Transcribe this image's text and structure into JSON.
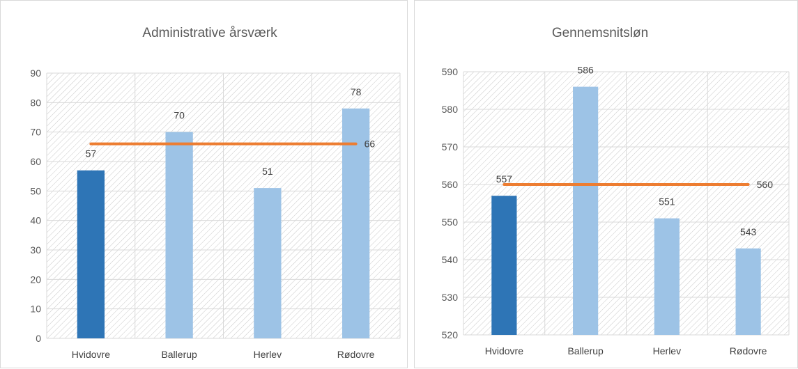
{
  "colors": {
    "highlight_bar": "#2e75b6",
    "other_bar": "#9dc3e6",
    "average_line": "#ed7d31",
    "grid": "#d9d9d9",
    "hatch": "#c8c8c8"
  },
  "chart_data": [
    {
      "type": "bar",
      "title": "Administrative årsværk",
      "categories": [
        "Hvidovre",
        "Ballerup",
        "Herlev",
        "Rødovre"
      ],
      "values": [
        57,
        70,
        51,
        78
      ],
      "value_labels": [
        "57",
        "70",
        "51",
        "78"
      ],
      "highlight_index": 0,
      "reference_line": {
        "value": 66,
        "label": "66"
      },
      "ylim": [
        0,
        90
      ],
      "yticks": [
        0,
        10,
        20,
        30,
        40,
        50,
        60,
        70,
        80,
        90
      ],
      "xlabel": "",
      "ylabel": "",
      "grid": true,
      "legend": "none"
    },
    {
      "type": "bar",
      "title": "Gennemsnitsløn",
      "categories": [
        "Hvidovre",
        "Ballerup",
        "Herlev",
        "Rødovre"
      ],
      "values": [
        557,
        586,
        551,
        543
      ],
      "value_labels": [
        "557",
        "586",
        "551",
        "543"
      ],
      "highlight_index": 0,
      "reference_line": {
        "value": 560,
        "label": "560"
      },
      "ylim": [
        520,
        590
      ],
      "yticks": [
        520,
        530,
        540,
        550,
        560,
        570,
        580,
        590
      ],
      "xlabel": "",
      "ylabel": "",
      "grid": true,
      "legend": "none"
    }
  ]
}
